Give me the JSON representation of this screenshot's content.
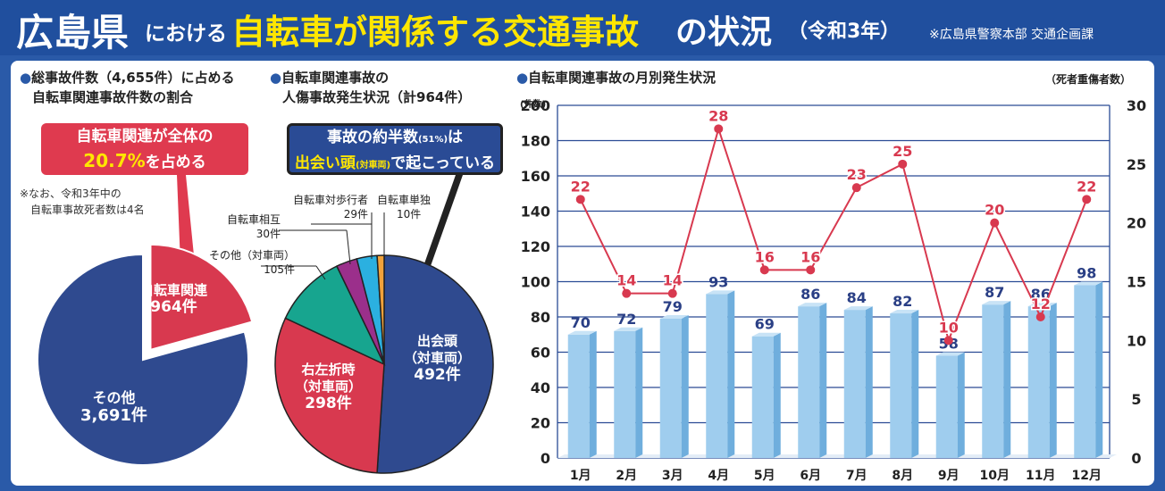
{
  "header": {
    "title_pref": "広島県",
    "title_ni": "における",
    "title_main": "自転車が関係する交通事故",
    "title_suffix": "の状況",
    "title_year": "（令和3年）",
    "source": "※広島県警察本部 交通企画課"
  },
  "section1": {
    "title_line1": "総事故件数（4,655件）に占める",
    "title_line2": "自転車関連事故件数の割合",
    "callout_line1": "自転車関連が全体の",
    "callout_pct": "20.7%",
    "callout_suffix": "を占める",
    "note_line1": "※なお、令和3年中の",
    "note_line2": "自転車事故死者数は4名"
  },
  "section2": {
    "title_line1": "自転車関連事故の",
    "title_line2": "人傷事故発生状況（計964件）",
    "callout_line1_a": "事故の約半数",
    "callout_line1_small": "(51%)",
    "callout_line1_b": "は",
    "callout_line2_a": "出会い頭",
    "callout_line2_small": "(対車両)",
    "callout_line2_b": "で起こっている"
  },
  "section3": {
    "title": "自転車関連事故の月別発生状況",
    "right_axis_title": "（死者重傷者数）",
    "left_axis_title": "(件数)"
  },
  "colors": {
    "navy": "#2f4a8f",
    "red": "#d8394f",
    "teal": "#17a58f",
    "purple": "#9b2f8b",
    "cyan": "#2bb0e0",
    "orange": "#f2a23a",
    "bar": "#9fcdee",
    "line": "#d8394f"
  },
  "chart_data": [
    {
      "type": "pie",
      "title": "総事故件数（4,655件）に占める自転車関連事故件数の割合",
      "slices": [
        {
          "name": "自転車関連",
          "value": 964,
          "label": "964件",
          "color": "#d8394f"
        },
        {
          "name": "その他",
          "value": 3691,
          "label": "3,691件",
          "color": "#2f4a8f"
        }
      ]
    },
    {
      "type": "pie",
      "title": "自転車関連事故の人傷事故発生状況（計964件）",
      "slices": [
        {
          "name": "出会頭（対車両）",
          "value": 492,
          "label": "492件",
          "color": "#2f4a8f"
        },
        {
          "name": "右左折時（対車両）",
          "value": 298,
          "label": "298件",
          "color": "#d8394f"
        },
        {
          "name": "その他（対車両）",
          "value": 105,
          "label": "105件",
          "color": "#17a58f"
        },
        {
          "name": "自転車相互",
          "value": 30,
          "label": "30件",
          "color": "#9b2f8b"
        },
        {
          "name": "自転車対歩行者",
          "value": 29,
          "label": "29件",
          "color": "#2bb0e0"
        },
        {
          "name": "自転車単独",
          "value": 10,
          "label": "10件",
          "color": "#f2a23a"
        }
      ]
    },
    {
      "type": "bar+line",
      "title": "自転車関連事故の月別発生状況",
      "categories": [
        "1月",
        "2月",
        "3月",
        "4月",
        "5月",
        "6月",
        "7月",
        "8月",
        "9月",
        "10月",
        "11月",
        "12月"
      ],
      "series": [
        {
          "name": "件数",
          "type": "bar",
          "axis": "left",
          "values": [
            70,
            72,
            79,
            93,
            69,
            86,
            84,
            82,
            58,
            87,
            86,
            98
          ]
        },
        {
          "name": "死者重傷者数",
          "type": "line",
          "axis": "right",
          "values": [
            22,
            14,
            14,
            28,
            16,
            16,
            23,
            25,
            10,
            20,
            12,
            22
          ]
        }
      ],
      "left_axis": {
        "label": "(件数)",
        "range": [
          0,
          200
        ],
        "ticks": [
          0,
          20,
          40,
          60,
          80,
          100,
          120,
          140,
          160,
          180,
          200
        ]
      },
      "right_axis": {
        "label": "（死者重傷者数）",
        "range": [
          0,
          30
        ],
        "ticks": [
          0,
          5,
          10,
          15,
          20,
          25,
          30
        ]
      },
      "grid": true
    }
  ]
}
